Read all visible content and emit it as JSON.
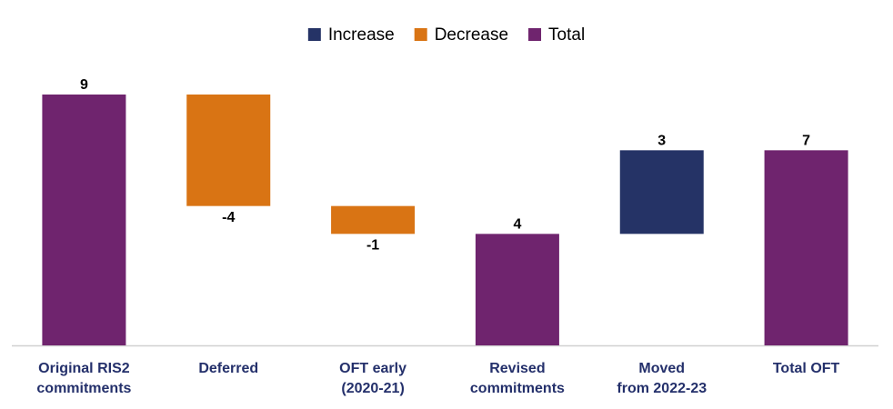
{
  "chart_data": {
    "type": "waterfall",
    "categories": [
      [
        "Original  RIS2",
        "commitments"
      ],
      [
        "Deferred"
      ],
      [
        "OFT early",
        "(2020-21)"
      ],
      [
        "Revised",
        "commitments"
      ],
      [
        "Moved",
        "from 2022-23"
      ],
      [
        "Total OFT"
      ]
    ],
    "series": [
      {
        "name": "Increase",
        "color": "#253366",
        "values": [
          null,
          null,
          null,
          null,
          3,
          null
        ]
      },
      {
        "name": "Decrease",
        "color": "#d97414",
        "values": [
          null,
          -4,
          -1,
          null,
          null,
          null
        ]
      },
      {
        "name": "Total",
        "color": "#6f246e",
        "values": [
          9,
          null,
          null,
          4,
          null,
          7
        ]
      }
    ]
  }
}
